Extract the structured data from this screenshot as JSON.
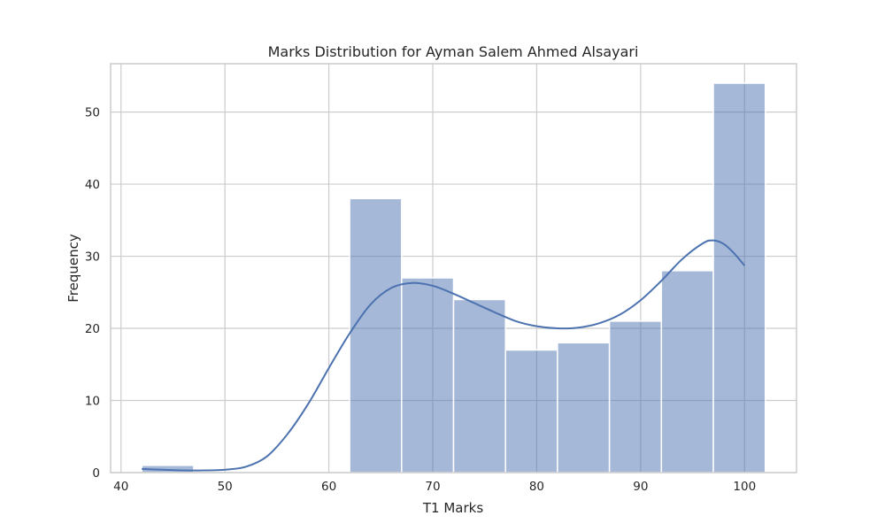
{
  "chart_data": {
    "type": "bar",
    "subtype": "histogram",
    "title": "Marks Distribution for Ayman Salem Ahmed Alsayari",
    "xlabel": "T1 Marks",
    "ylabel": "Frequency",
    "xlim": [
      39.0,
      105.0
    ],
    "ylim": [
      0,
      56.7
    ],
    "xticks": [
      40,
      50,
      60,
      70,
      80,
      90,
      100
    ],
    "yticks": [
      0,
      10,
      20,
      30,
      40,
      50
    ],
    "grid": true,
    "bars": [
      {
        "x0": 42,
        "x1": 47,
        "value": 1
      },
      {
        "x0": 47,
        "x1": 52,
        "value": 0
      },
      {
        "x0": 52,
        "x1": 57,
        "value": 0
      },
      {
        "x0": 57,
        "x1": 62,
        "value": 0
      },
      {
        "x0": 62,
        "x1": 67,
        "value": 38
      },
      {
        "x0": 67,
        "x1": 72,
        "value": 27
      },
      {
        "x0": 72,
        "x1": 77,
        "value": 24
      },
      {
        "x0": 77,
        "x1": 82,
        "value": 17
      },
      {
        "x0": 82,
        "x1": 87,
        "value": 18
      },
      {
        "x0": 87,
        "x1": 92,
        "value": 21
      },
      {
        "x0": 92,
        "x1": 97,
        "value": 28
      },
      {
        "x0": 97,
        "x1": 102,
        "value": 54
      }
    ],
    "kde_curve": {
      "x": [
        42,
        44,
        46,
        48,
        50,
        52,
        54,
        56,
        58,
        60,
        62,
        64,
        66,
        68,
        70,
        72,
        74,
        76,
        78,
        80,
        82,
        84,
        86,
        88,
        90,
        92,
        94,
        96,
        97,
        98,
        99,
        100
      ],
      "y": [
        0.5,
        0.4,
        0.3,
        0.3,
        0.4,
        0.8,
        2.2,
        5.3,
        9.5,
        14.5,
        19.3,
        23.3,
        25.6,
        26.3,
        25.9,
        24.8,
        23.5,
        22.2,
        21.0,
        20.3,
        20.0,
        20.1,
        20.7,
        21.9,
        23.9,
        26.6,
        29.6,
        31.8,
        32.2,
        31.7,
        30.4,
        28.7
      ]
    },
    "colors": {
      "bar_fill": "#4c72b0",
      "bar_opacity": 0.5,
      "kde_line": "#4c72b0",
      "background": "#ffffff",
      "grid": "#cccccc"
    }
  }
}
